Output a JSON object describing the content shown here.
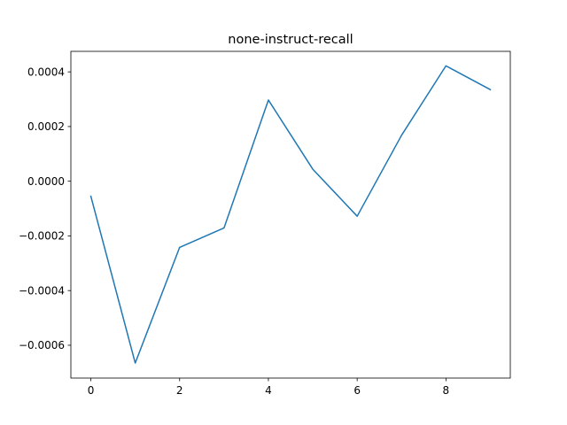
{
  "chart_data": {
    "type": "line",
    "title": "none-instruct-recall",
    "xlabel": "",
    "ylabel": "",
    "x": [
      0,
      1,
      2,
      3,
      4,
      5,
      6,
      7,
      8,
      9
    ],
    "series": [
      {
        "values": [
          -5.5e-05,
          -0.000665,
          -0.000242,
          -0.000171,
          0.000297,
          4.4e-05,
          -0.000128,
          0.000168,
          0.000422,
          0.000335
        ]
      }
    ],
    "xlim": [
      -0.45,
      9.45
    ],
    "ylim": [
      -0.00072,
      0.000475
    ],
    "xticks": [
      0,
      2,
      4,
      6,
      8
    ],
    "xtick_labels": [
      "0",
      "2",
      "4",
      "6",
      "8"
    ],
    "yticks": [
      -0.0006,
      -0.0004,
      -0.0002,
      0.0,
      0.0002,
      0.0004
    ],
    "ytick_labels": [
      "−0.0006",
      "−0.0004",
      "−0.0002",
      "0.0000",
      "0.0002",
      "0.0004"
    ],
    "grid": false,
    "legend": "none",
    "colors": {
      "line": "#1f77b4",
      "axes": "#000000"
    }
  }
}
